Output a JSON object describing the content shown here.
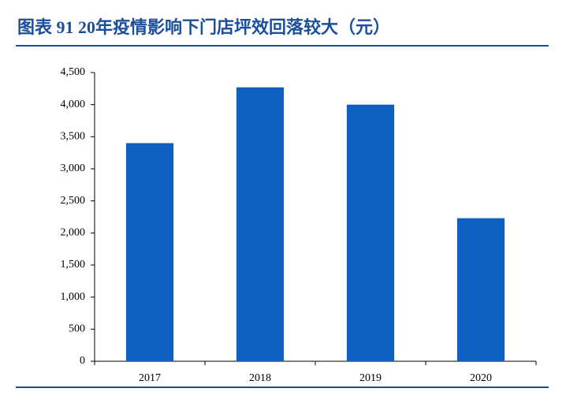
{
  "chart_data": {
    "type": "bar",
    "title": "图表 91  20年疫情影响下门店坪效回落较大（元）",
    "categories": [
      "2017",
      "2018",
      "2019",
      "2020"
    ],
    "values": [
      3400,
      4270,
      4000,
      2230
    ],
    "color": "#0e5fc0",
    "ylim": [
      0,
      4500
    ],
    "yticks": [
      0,
      500,
      {
        "value": 1000,
        "label": "1,000"
      },
      {
        "value": 1500,
        "label": "1,500"
      },
      {
        "value": 2000,
        "label": "2,000"
      },
      {
        "value": 2500,
        "label": "2,500"
      },
      {
        "value": 3000,
        "label": "3,000"
      },
      {
        "value": 3500,
        "label": "3,500"
      },
      {
        "value": 4000,
        "label": "4,000"
      },
      {
        "value": 4500,
        "label": "4,500"
      }
    ],
    "grid": false
  }
}
